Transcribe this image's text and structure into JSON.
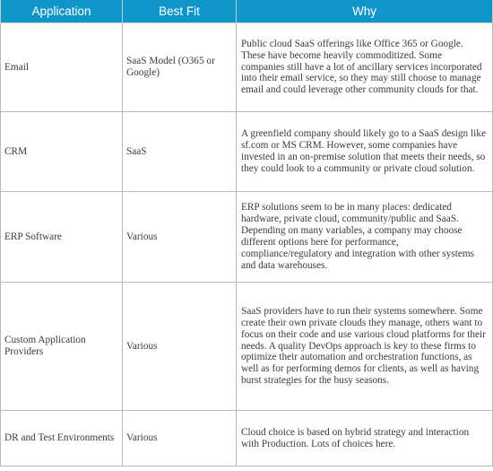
{
  "table": {
    "headers": [
      "Application",
      "Best Fit",
      "Why"
    ],
    "rows": [
      {
        "application": "Email",
        "best_fit": "SaaS Model (O365 or Google)",
        "why": "Public cloud SaaS offerings like Office 365 or Google. These have become heavily commoditized. Some companies still have a lot of ancillary services incorporated into their email service, so they may still choose to manage email and could leverage other community clouds for that."
      },
      {
        "application": "CRM",
        "best_fit": "SaaS",
        "why": "A greenfield company should likely go to a SaaS design like sf.com or MS CRM. However, some companies have invested in an on-premise solution that meets their needs, so they could look to a community or private cloud solution."
      },
      {
        "application": "ERP Software",
        "best_fit": "Various",
        "why": "ERP solutions seem to be in many places: dedicated hardware, private cloud, community/public and SaaS. Depending on many variables, a company may choose different options here for performance, compliance/regulatory and integration with other systems and data warehouses."
      },
      {
        "application": "Custom Application Providers",
        "best_fit": "Various",
        "why": "SaaS providers have to run their systems somewhere. Some create their own private clouds they manage, others want to focus on their code and use various cloud platforms for their needs. A quality DevOps approach is key to these firms to optimize their automation and orchestration functions, as well as for performing demos for clients, as well as having burst strategies for the busy seasons."
      },
      {
        "application": "DR and Test Environments",
        "best_fit": "Various",
        "why": "Cloud choice is based on hybrid strategy and interaction with Production. Lots of choices here."
      }
    ]
  },
  "colors": {
    "header_background": "#0f96c8",
    "header_text": "#ffffff",
    "grid_line": "#b9b9b9",
    "body_text": "#3a3a3a"
  }
}
